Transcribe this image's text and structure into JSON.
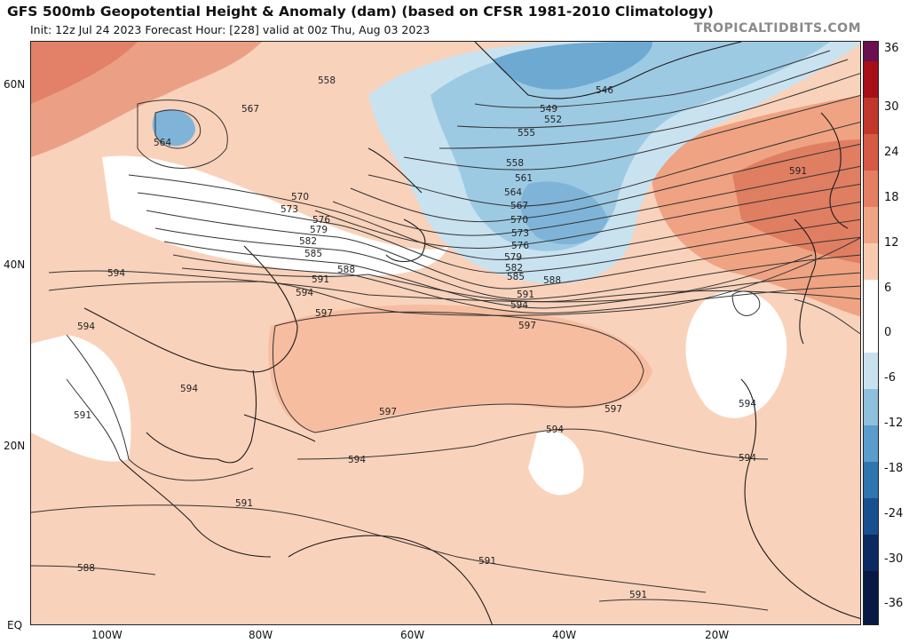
{
  "header": {
    "title": "GFS 500mb Geopotential Height & Anomaly (dam) (based on CFSR 1981-2010 Climatology)",
    "subtitle": "Init: 12z Jul 24 2023   Forecast Hour: [228]   valid at 00z Thu, Aug 03 2023",
    "brand": "TROPICALTIDBITS.COM"
  },
  "map": {
    "lat_labels": [
      "60N",
      "40N",
      "20N",
      "EQ"
    ],
    "lon_labels": [
      "100W",
      "80W",
      "60W",
      "40W",
      "20W"
    ],
    "contour_labels": [
      "546",
      "549",
      "552",
      "555",
      "558",
      "558",
      "561",
      "564",
      "564",
      "567",
      "567",
      "570",
      "570",
      "573",
      "573",
      "576",
      "576",
      "579",
      "579",
      "582",
      "582",
      "585",
      "585",
      "588",
      "588",
      "588",
      "591",
      "591",
      "591",
      "591",
      "591",
      "591",
      "591",
      "594",
      "594",
      "594",
      "594",
      "594",
      "594",
      "594",
      "594",
      "594",
      "597",
      "597",
      "597",
      "597"
    ]
  },
  "colorbar": {
    "labels": [
      "36",
      "30",
      "24",
      "18",
      "12",
      "6",
      "0",
      "-6",
      "-12",
      "-18",
      "-24",
      "-30",
      "-36"
    ],
    "colors": [
      "#6a0f4f",
      "#a50f15",
      "#c3362c",
      "#d65a45",
      "#e47f63",
      "#efa584",
      "#f8cbb0",
      "#ffffff",
      "#ffffff",
      "#c9e1ef",
      "#8ebfdc",
      "#5a9ccb",
      "#2f75b0",
      "#174f8f",
      "#0b2a62",
      "#081a44"
    ]
  }
}
